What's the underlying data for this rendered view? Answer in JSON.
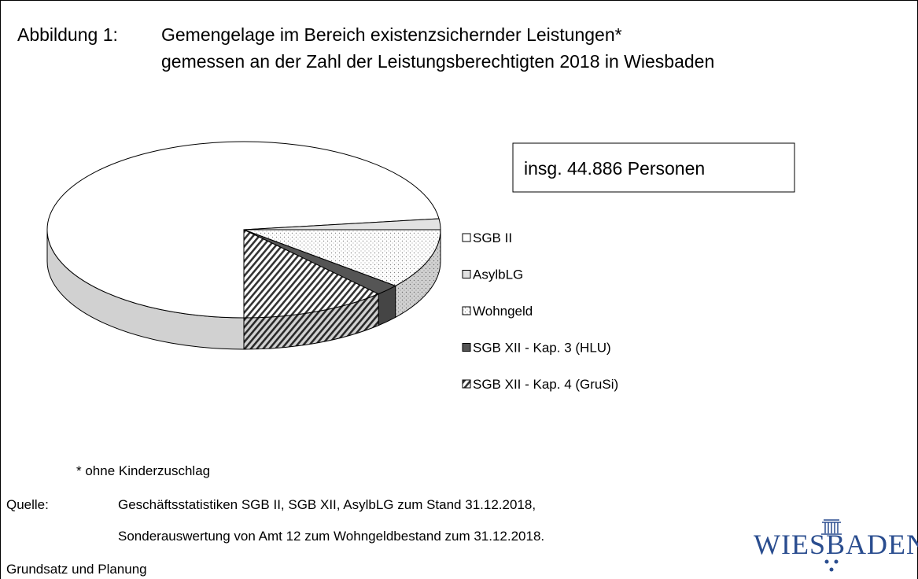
{
  "figure": {
    "label": "Abbildung 1:",
    "title_lines": [
      "Gemengelage im Bereich existenzsichernder Leistungen*",
      "gemessen an der Zahl der Leistungsberechtigten 2018 in Wiesbaden"
    ]
  },
  "chart_data": {
    "type": "pie",
    "annotation": "insg. 44.886 Personen",
    "categories": [
      "SGB II",
      "AsylbLG",
      "Wohngeld",
      "SGB XII - Kap. 3 (HLU)",
      "SGB XII - Kap. 4 (GruSi)"
    ],
    "values": [
      73,
      2,
      11,
      2,
      12
    ],
    "colors": [
      "#ffffff",
      "#e2e2e2",
      "#ffffff",
      "#555555",
      "#ffffff"
    ],
    "patterns": [
      null,
      null,
      "dots",
      null,
      "hatch"
    ],
    "legend": "right"
  },
  "footnote": "* ohne Kinderzuschlag",
  "source": {
    "label": "Quelle:",
    "lines": [
      "Geschäftsstatistiken SGB II, SGB XII, AsylbLG zum Stand 31.12.2018,",
      "Sonderauswertung von Amt 12 zum Wohngeldbestand zum 31.12.2018."
    ]
  },
  "department": "Grundsatz und Planung",
  "logo": "WIESBADEN"
}
